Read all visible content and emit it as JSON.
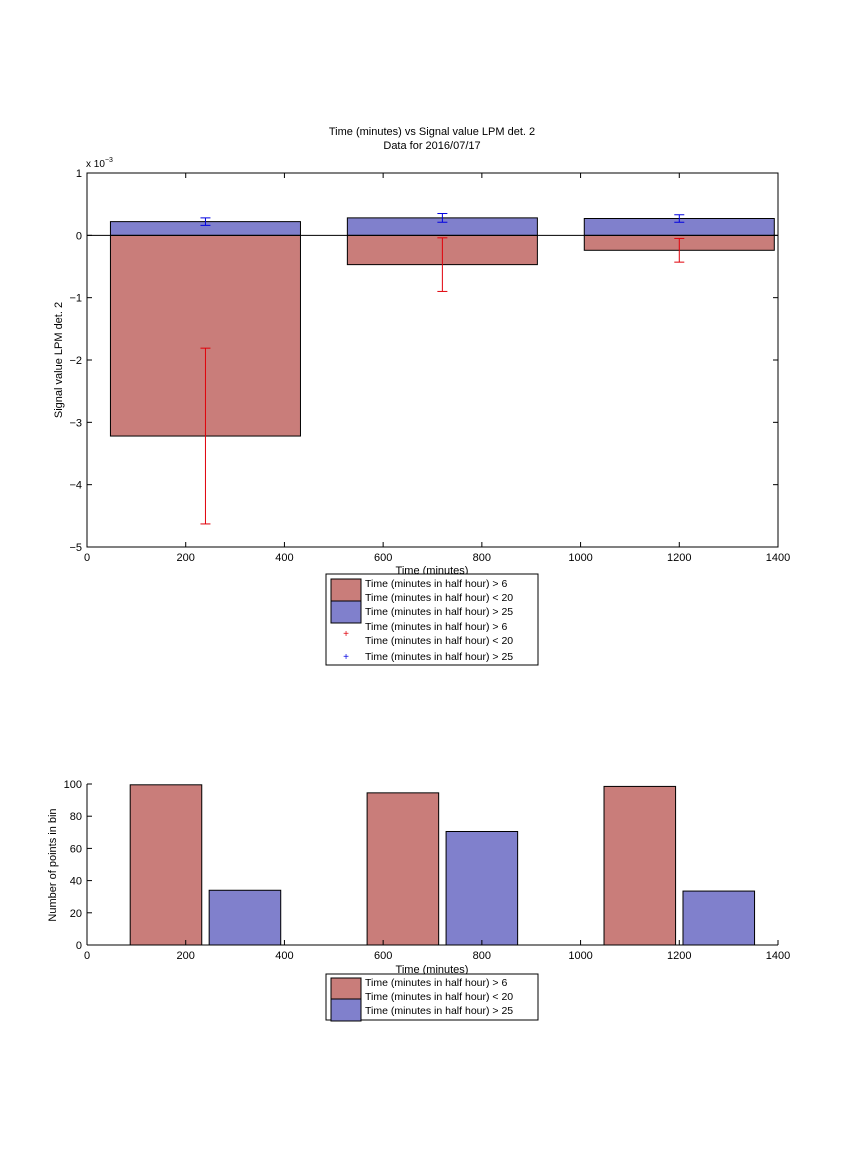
{
  "chart_data": [
    {
      "type": "bar",
      "title": "Time (minutes) vs Signal value LPM det. 2",
      "subtitle": "Data for 2016/07/17",
      "xlabel": "Time (minutes)",
      "ylabel": "Signal value LPM det. 2",
      "y_multiplier": "x 10",
      "y_multiplier_exp": "−3",
      "xlim": [
        0,
        1400
      ],
      "ylim": [
        -5,
        1
      ],
      "x_ticks": [
        0,
        200,
        400,
        600,
        800,
        1000,
        1200,
        1400
      ],
      "y_ticks": [
        1,
        0,
        -1,
        -2,
        -3,
        -4,
        -5
      ],
      "y_tick_labels": [
        "1",
        "0",
        "−1",
        "−2",
        "−3",
        "−4",
        "−5"
      ],
      "bin_centers": [
        240,
        720,
        1200
      ],
      "bin_width": 385,
      "series": [
        {
          "name": "Time (minutes in half hour) > 6 Time (minutes in half hour) < 20",
          "legend_line1": "Time (minutes in half hour) > 6",
          "legend_line2": "Time (minutes in half hour) < 20",
          "color": "#c97d7a",
          "error_color": "#e0000a",
          "values": [
            -3.22,
            -0.47,
            -0.24
          ],
          "error": [
            1.41,
            0.43,
            0.19
          ]
        },
        {
          "name": "Time (minutes in half hour) > 25",
          "legend_line1": "Time (minutes in half hour) > 25",
          "color": "#8080cc",
          "error_color": "#0000e0",
          "values": [
            0.22,
            0.28,
            0.27
          ],
          "error": [
            0.06,
            0.07,
            0.06
          ]
        }
      ],
      "legend_errorbars": [
        {
          "line1": "Time (minutes in half hour) > 6",
          "line2": "Time (minutes in half hour) < 20",
          "color": "#e0000a"
        },
        {
          "line1": "Time (minutes in half hour) > 25",
          "color": "#0000e0"
        }
      ],
      "legend_position": "bottom-center",
      "grid": false
    },
    {
      "type": "bar",
      "xlabel": "Time (minutes)",
      "ylabel": "Number of points in bin",
      "xlim": [
        0,
        1400
      ],
      "ylim": [
        0,
        100
      ],
      "x_ticks": [
        0,
        200,
        400,
        600,
        800,
        1000,
        1200,
        1400
      ],
      "y_ticks": [
        0,
        20,
        40,
        60,
        80,
        100
      ],
      "bar_width": 145,
      "series": [
        {
          "name": "Time (minutes in half hour) > 6 Time (minutes in half hour) < 20",
          "legend_line1": "Time (minutes in half hour) > 6",
          "legend_line2": "Time (minutes in half hour) < 20",
          "color": "#c97d7a",
          "x": [
            160,
            640,
            1120
          ],
          "values": [
            99.5,
            94.5,
            98.5
          ]
        },
        {
          "name": "Time (minutes in half hour) > 25",
          "legend_line1": "Time (minutes in half hour) > 25",
          "color": "#8080cc",
          "x": [
            320,
            800,
            1280
          ],
          "values": [
            34,
            70.5,
            33.5
          ]
        }
      ],
      "legend_position": "bottom-center",
      "grid": false
    }
  ]
}
